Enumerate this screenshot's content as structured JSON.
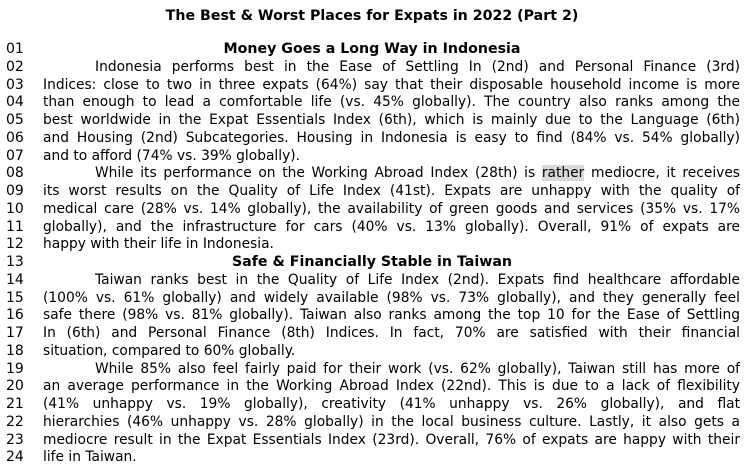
{
  "title": "The Best & Worst Places for Expats in 2022 (Part 2)",
  "highlight": {
    "word": "rather",
    "color": "#d9d9d9"
  },
  "lines": [
    {
      "n": "01",
      "style": "c",
      "indent": 0,
      "text": "Money Goes a Long Way in Indonesia"
    },
    {
      "n": "02",
      "style": "j",
      "indent": 1,
      "text": "Indonesia performs best in the Ease of Settling In (2nd) and Personal Finance (3rd)"
    },
    {
      "n": "03",
      "style": "j",
      "indent": 0,
      "text": "Indices: close to two in three expats (64%) say that their disposable household income is more"
    },
    {
      "n": "04",
      "style": "j",
      "indent": 0,
      "text": "than enough to lead a comfortable life (vs. 45% globally). The country also ranks among the"
    },
    {
      "n": "05",
      "style": "j",
      "indent": 0,
      "text": "best worldwide in the Expat Essentials Index (6th), which is mainly due to the Language (6th)"
    },
    {
      "n": "06",
      "style": "j",
      "indent": 0,
      "text": "and Housing (2nd) Subcategories. Housing in Indonesia is easy to find (84% vs. 54% globally)"
    },
    {
      "n": "07",
      "style": "l",
      "indent": 0,
      "text": "and to afford (74% vs. 39% globally)."
    },
    {
      "n": "08",
      "style": "j",
      "indent": 1,
      "pre": "While its performance on the Working Abroad Index (28th) is",
      "hl": "rather",
      "post": "mediocre, it receives"
    },
    {
      "n": "09",
      "style": "j",
      "indent": 0,
      "text": "its worst results on the Quality of Life Index (41st). Expats are unhappy with the quality of"
    },
    {
      "n": "10",
      "style": "j",
      "indent": 0,
      "text": "medical care (28% vs. 14% globally), the availability of green goods and services (35% vs. 17%"
    },
    {
      "n": "11",
      "style": "j",
      "indent": 0,
      "text": "globally), and the infrastructure for cars (40% vs. 13% globally). Overall, 91% of expats are"
    },
    {
      "n": "12",
      "style": "l",
      "indent": 0,
      "text": "happy with their life in Indonesia."
    },
    {
      "n": "13",
      "style": "c",
      "indent": 0,
      "text": "Safe & Financially Stable in Taiwan"
    },
    {
      "n": "14",
      "style": "j",
      "indent": 1,
      "text": "Taiwan ranks best in the Quality of Life Index (2nd). Expats find healthcare affordable"
    },
    {
      "n": "15",
      "style": "j",
      "indent": 0,
      "text": "(100% vs. 61% globally) and widely available (98% vs. 73% globally), and they generally feel"
    },
    {
      "n": "16",
      "style": "j",
      "indent": 0,
      "text": "safe there (98% vs. 81% globally). Taiwan also ranks among the top 10 for the Ease of Settling"
    },
    {
      "n": "17",
      "style": "j",
      "indent": 0,
      "text": "In (6th) and Personal Finance (8th) Indices. In fact, 70% are satisfied with their financial"
    },
    {
      "n": "18",
      "style": "l",
      "indent": 0,
      "text": "situation, compared to 60% globally."
    },
    {
      "n": "19",
      "style": "j",
      "indent": 1,
      "text": "While 85% also feel fairly paid for their work (vs. 62% globally), Taiwan still has more of"
    },
    {
      "n": "20",
      "style": "j",
      "indent": 0,
      "text": "an average performance in the Working Abroad Index (22nd). This is due to a lack of flexibility"
    },
    {
      "n": "21",
      "style": "j",
      "indent": 0,
      "text": "(41% unhappy vs. 19% globally), creativity (41% unhappy vs. 26% globally), and flat"
    },
    {
      "n": "22",
      "style": "j",
      "indent": 0,
      "text": "hierarchies (46% unhappy vs. 28% globally) in the local business culture. Lastly, it also gets a"
    },
    {
      "n": "23",
      "style": "j",
      "indent": 0,
      "text": "mediocre result in the Expat Essentials Index (23rd). Overall, 76% of expats are happy with their"
    },
    {
      "n": "24",
      "style": "l",
      "indent": 0,
      "text": "life in Taiwan."
    }
  ]
}
